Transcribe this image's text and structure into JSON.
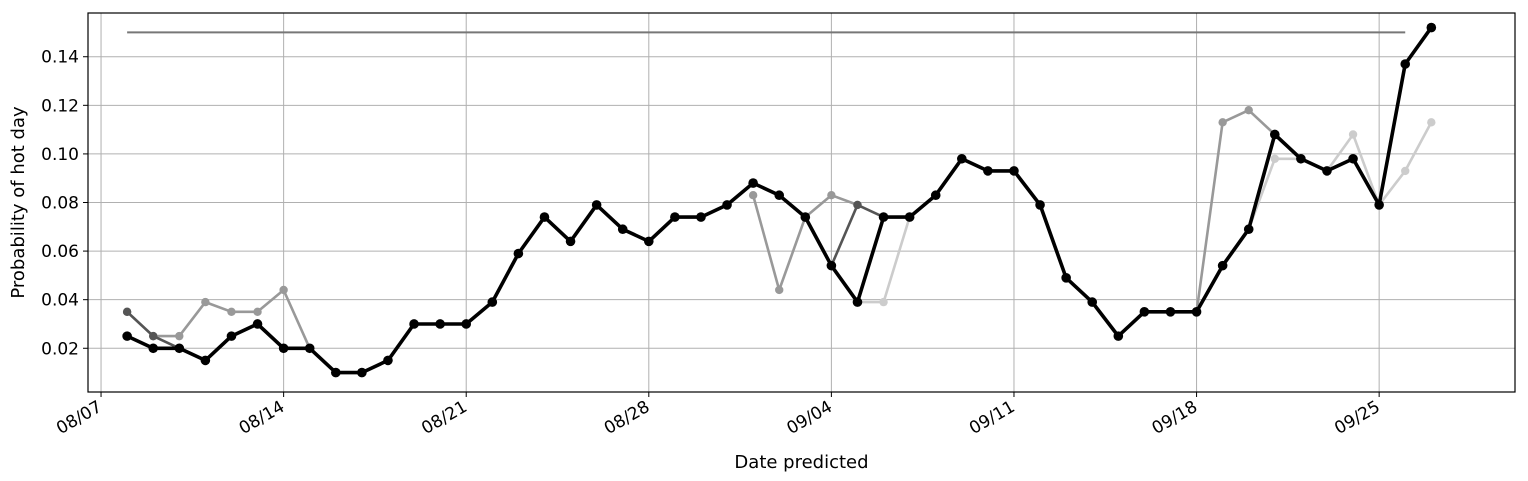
{
  "chart_data": {
    "type": "line",
    "title": "",
    "xlabel": "Date predicted",
    "ylabel": "Probability of hot day",
    "x_ticks": [
      "08/07",
      "08/14",
      "08/21",
      "08/28",
      "09/04",
      "09/11",
      "09/18",
      "09/25"
    ],
    "y_ticks": [
      "0.02",
      "0.04",
      "0.06",
      "0.08",
      "0.10",
      "0.12",
      "0.14"
    ],
    "xlim": [
      "2020-08-06 12:00",
      "2020-09-30 05:00"
    ],
    "ylim": [
      0.002,
      0.158
    ],
    "grid": true,
    "legend": "none",
    "reference_line": {
      "x_start": "2020-08-08",
      "x_end": "2020-09-26",
      "y": 0.15,
      "color": "#777777"
    },
    "series": [
      {
        "color": "#cccccc",
        "x": [
          "2020-09-05",
          "2020-09-06",
          "2020-09-07"
        ],
        "y": [
          0.039,
          0.039,
          0.074
        ]
      },
      {
        "color": "#cccccc",
        "x": [
          "2020-09-20",
          "2020-09-21",
          "2020-09-22",
          "2020-09-23",
          "2020-09-24",
          "2020-09-25",
          "2020-09-26",
          "2020-09-27"
        ],
        "y": [
          0.069,
          0.098,
          0.098,
          0.093,
          0.108,
          0.079,
          0.093,
          0.113
        ]
      },
      {
        "color": "#999999",
        "x": [
          "2020-08-08",
          "2020-08-09",
          "2020-08-10",
          "2020-08-11",
          "2020-08-12",
          "2020-08-13",
          "2020-08-14",
          "2020-08-15"
        ],
        "y": [
          0.035,
          0.025,
          0.025,
          0.039,
          0.035,
          0.035,
          0.044,
          0.02
        ]
      },
      {
        "color": "#999999",
        "x": [
          "2020-09-01",
          "2020-09-02",
          "2020-09-03",
          "2020-09-04",
          "2020-09-05"
        ],
        "y": [
          0.083,
          0.044,
          0.074,
          0.083,
          0.079
        ]
      },
      {
        "color": "#999999",
        "x": [
          "2020-09-18",
          "2020-09-19",
          "2020-09-20",
          "2020-09-21"
        ],
        "y": [
          0.035,
          0.113,
          0.118,
          0.108
        ]
      },
      {
        "color": "#555555",
        "x": [
          "2020-08-08",
          "2020-08-09",
          "2020-08-10"
        ],
        "y": [
          0.035,
          0.025,
          0.02
        ]
      },
      {
        "color": "#555555",
        "x": [
          "2020-09-03",
          "2020-09-04",
          "2020-09-05",
          "2020-09-06"
        ],
        "y": [
          0.074,
          0.054,
          0.079,
          0.074
        ]
      },
      {
        "color": "#000000",
        "x": [
          "2020-08-08",
          "2020-08-09",
          "2020-08-10",
          "2020-08-11",
          "2020-08-12",
          "2020-08-13",
          "2020-08-14",
          "2020-08-15",
          "2020-08-16",
          "2020-08-17",
          "2020-08-18",
          "2020-08-19",
          "2020-08-20",
          "2020-08-21",
          "2020-08-22",
          "2020-08-23",
          "2020-08-24",
          "2020-08-25",
          "2020-08-26",
          "2020-08-27",
          "2020-08-28",
          "2020-08-29",
          "2020-08-30",
          "2020-08-31",
          "2020-09-01",
          "2020-09-02",
          "2020-09-03",
          "2020-09-04",
          "2020-09-05",
          "2020-09-06",
          "2020-09-07",
          "2020-09-08",
          "2020-09-09",
          "2020-09-10",
          "2020-09-11",
          "2020-09-12",
          "2020-09-13",
          "2020-09-14",
          "2020-09-15",
          "2020-09-16",
          "2020-09-17",
          "2020-09-18",
          "2020-09-19",
          "2020-09-20",
          "2020-09-21",
          "2020-09-22",
          "2020-09-23",
          "2020-09-24",
          "2020-09-25",
          "2020-09-26",
          "2020-09-27"
        ],
        "y": [
          0.025,
          0.02,
          0.02,
          0.015,
          0.025,
          0.03,
          0.02,
          0.02,
          0.01,
          0.01,
          0.015,
          0.03,
          0.03,
          0.03,
          0.039,
          0.059,
          0.074,
          0.064,
          0.079,
          0.069,
          0.064,
          0.074,
          0.074,
          0.079,
          0.088,
          0.083,
          0.074,
          0.054,
          0.039,
          0.074,
          0.074,
          0.083,
          0.098,
          0.093,
          0.093,
          0.079,
          0.049,
          0.039,
          0.025,
          0.035,
          0.035,
          0.035,
          0.054,
          0.069,
          0.108,
          0.098,
          0.093,
          0.098,
          0.079,
          0.137,
          0.152
        ]
      }
    ]
  }
}
